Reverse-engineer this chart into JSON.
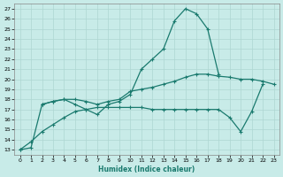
{
  "xlabel": "Humidex (Indice chaleur)",
  "xlim": [
    -0.5,
    23.5
  ],
  "ylim": [
    12.5,
    27.5
  ],
  "xticks": [
    0,
    1,
    2,
    3,
    4,
    5,
    6,
    7,
    8,
    9,
    10,
    11,
    12,
    13,
    14,
    15,
    16,
    17,
    18,
    19,
    20,
    21,
    22,
    23
  ],
  "yticks": [
    13,
    14,
    15,
    16,
    17,
    18,
    19,
    20,
    21,
    22,
    23,
    24,
    25,
    26,
    27
  ],
  "background_color": "#c8ebe8",
  "grid_color": "#aed6d2",
  "line_color": "#1a7a6e",
  "series": [
    {
      "comment": "main peaked curve: 0->13, 1->13.2, 2->17.5, 3->17.8, 4->18, 5->17.5, 6->17.0, 7->16.5, 8->17.5, 9->17.8, 10->18.5, 11->21, 12->22, 13->23, 14->25.8, 15->27, 16->26.5, 17->25, 18->20.5",
      "x": [
        0,
        1,
        2,
        3,
        4,
        5,
        6,
        7,
        8,
        9,
        10,
        11,
        12,
        13,
        14,
        15,
        16,
        17,
        18
      ],
      "y": [
        13,
        13.2,
        17.5,
        17.8,
        18.0,
        17.5,
        17.0,
        16.5,
        17.5,
        17.8,
        18.5,
        21.0,
        22.0,
        23.0,
        25.8,
        27.0,
        26.5,
        25.0,
        20.5
      ]
    },
    {
      "x": [
        2,
        3,
        4,
        5,
        6,
        7,
        8,
        9,
        10,
        11,
        12,
        13,
        14,
        15,
        16,
        17,
        18,
        19,
        20,
        21,
        22,
        23
      ],
      "y": [
        17.5,
        17.8,
        18.0,
        18.0,
        17.8,
        17.5,
        17.8,
        18.0,
        18.8,
        19.0,
        19.2,
        19.5,
        19.8,
        20.2,
        20.5,
        20.5,
        20.3,
        20.2,
        20.0,
        20.0,
        19.8,
        19.5
      ]
    },
    {
      "x": [
        0,
        1,
        2,
        3,
        4,
        5,
        6,
        7,
        8,
        9,
        10,
        11,
        12,
        13,
        14,
        15,
        16,
        17,
        18,
        19,
        20,
        21,
        22
      ],
      "y": [
        13.0,
        13.8,
        14.8,
        15.5,
        16.2,
        16.8,
        17.0,
        17.2,
        17.2,
        17.2,
        17.2,
        17.2,
        17.0,
        17.0,
        17.0,
        17.0,
        17.0,
        17.0,
        17.0,
        16.2,
        14.8,
        16.8,
        19.5
      ]
    }
  ]
}
